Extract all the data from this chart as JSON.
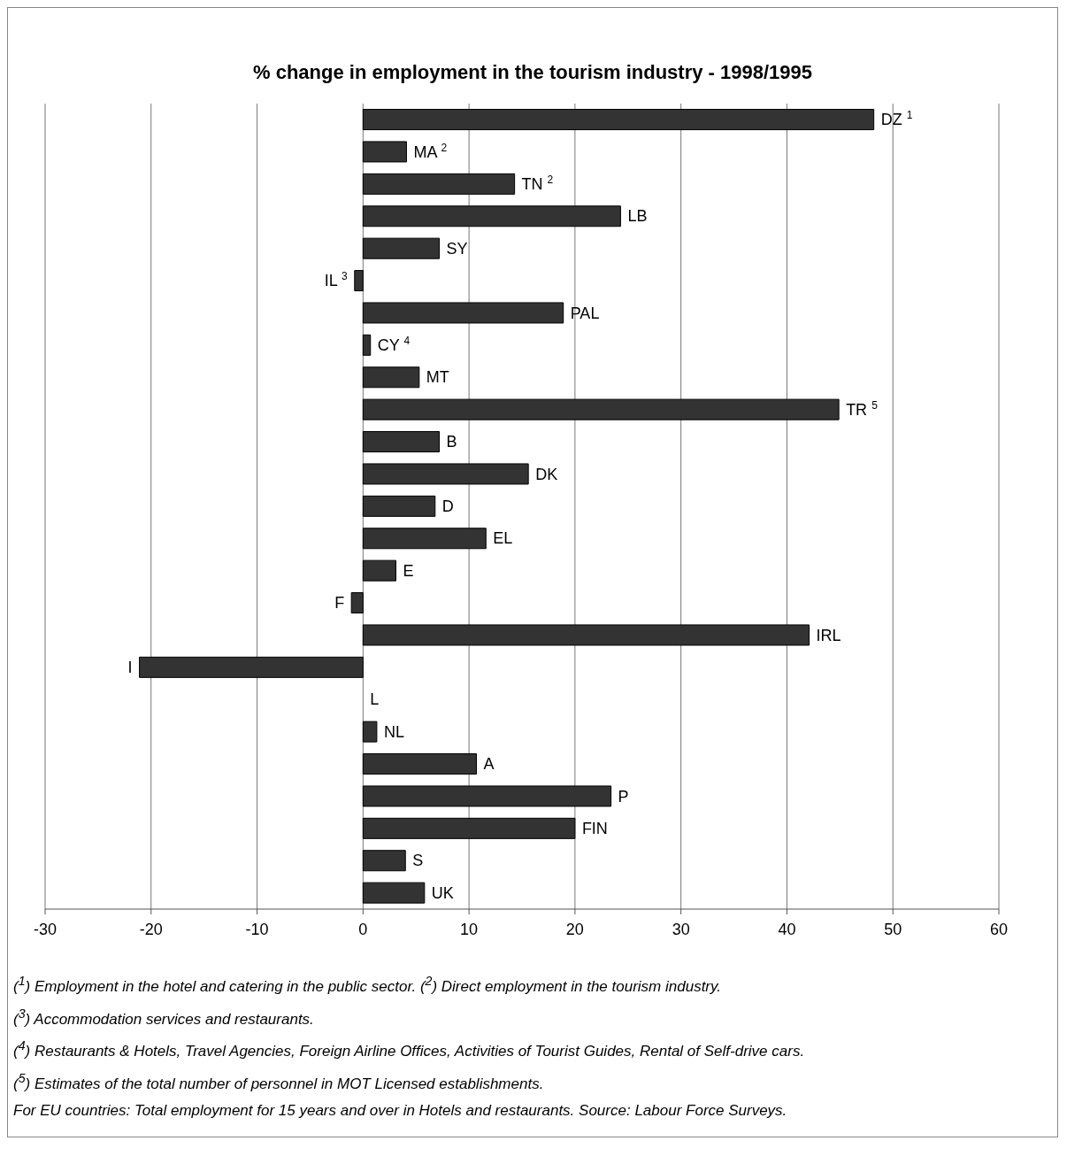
{
  "chart_data": {
    "type": "bar",
    "orientation": "horizontal",
    "title": "% change in employment in the tourism industry -  1998/1995",
    "categories": [
      "DZ $^{1}$",
      "MA $^{2}$",
      "TN  $^{2}$",
      "LB",
      "SY",
      "IL $^{3}$",
      "PAL",
      "CY $^{4}$",
      "MT",
      "TR $^{5}$",
      "B",
      "DK",
      "D",
      "EL",
      "E",
      "F",
      "IRL",
      "I",
      "L",
      "NL",
      "A",
      "P",
      "FIN",
      "S",
      "UK"
    ],
    "values": [
      48.2,
      4.1,
      14.3,
      24.3,
      7.2,
      -0.8,
      18.9,
      0.7,
      5.3,
      44.9,
      7.2,
      15.6,
      6.8,
      11.6,
      3.1,
      -1.1,
      42.1,
      -21.1,
      0,
      1.3,
      10.7,
      23.4,
      20.0,
      4.0,
      5.8
    ],
    "color": "#333333",
    "xlim": [
      -30,
      60
    ],
    "xticks": [
      -30,
      -20,
      -10,
      0,
      10,
      20,
      30,
      40,
      50,
      60
    ],
    "grid": "x",
    "annotations": [
      "($^{1}$) Employment in the hotel and catering in the public sector.  ($^{2}$) Direct employment in the tourism industry.",
      "($^{3}$) Accommodation services and restaurants.",
      "($^{4}$) Restaurants & Hotels, Travel Agencies, Foreign Airline Offices, Activities of Tourist Guides, Rental of Self-drive cars.",
      "($^{5}$) Estimates of the total number of personnel in MOT Licensed establishments.",
      "For EU countries: Total employment for 15 years and over in Hotels and restaurants. Source: Labour Force Surveys."
    ]
  }
}
